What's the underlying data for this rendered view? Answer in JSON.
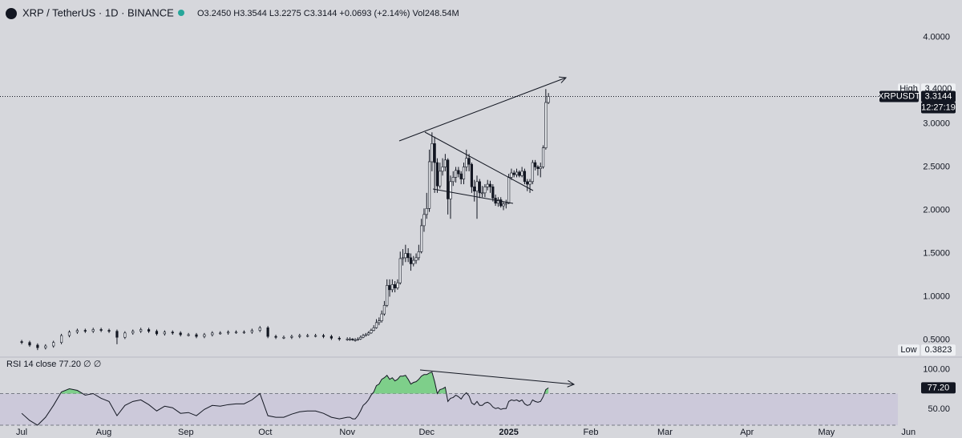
{
  "chart_data": [
    {
      "type": "candlestick",
      "title": "XRP / TetherUS · 1D · BINANCE",
      "ohlc_legend": [
        "O3.2450",
        "H3.3544",
        "L3.2275",
        "C3.3144",
        "+0.0693 (+2.14%)",
        "Vol248.54M"
      ],
      "x": [
        0,
        3,
        6,
        9,
        12,
        15,
        18,
        21,
        24,
        27,
        30,
        33,
        36,
        39,
        42,
        45,
        48,
        51,
        54,
        57,
        60,
        63,
        66,
        69,
        72,
        75,
        78,
        81,
        84,
        87,
        90,
        93,
        96,
        99,
        102,
        105,
        108,
        111,
        114,
        117,
        120,
        123,
        124,
        125,
        126,
        127,
        128,
        129,
        130,
        131,
        132,
        133,
        134,
        135,
        136,
        137,
        138,
        139,
        140,
        141,
        142,
        143,
        144,
        145,
        146,
        147,
        148,
        149,
        150,
        151,
        152,
        153,
        154,
        155,
        156,
        157,
        158,
        159,
        160,
        161,
        162,
        163,
        164,
        165,
        166,
        167,
        168,
        169,
        170,
        171,
        172,
        173,
        174,
        175,
        176,
        177,
        178,
        179,
        180,
        181,
        182,
        183,
        184,
        185,
        186,
        187,
        188,
        189,
        190,
        191,
        192,
        193,
        194,
        195,
        196,
        197,
        198,
        199
      ],
      "open": [
        0.48,
        0.47,
        0.44,
        0.41,
        0.43,
        0.47,
        0.55,
        0.59,
        0.61,
        0.6,
        0.62,
        0.61,
        0.6,
        0.53,
        0.58,
        0.6,
        0.62,
        0.6,
        0.57,
        0.59,
        0.58,
        0.56,
        0.56,
        0.54,
        0.56,
        0.58,
        0.58,
        0.59,
        0.59,
        0.59,
        0.61,
        0.64,
        0.54,
        0.53,
        0.53,
        0.54,
        0.55,
        0.55,
        0.55,
        0.54,
        0.52,
        0.51,
        0.51,
        0.51,
        0.5,
        0.5,
        0.51,
        0.53,
        0.55,
        0.56,
        0.58,
        0.61,
        0.64,
        0.7,
        0.72,
        0.8,
        0.9,
        1.13,
        1.08,
        1.14,
        1.1,
        1.16,
        1.44,
        1.45,
        1.5,
        1.45,
        1.38,
        1.42,
        1.45,
        1.52,
        1.82,
        1.95,
        2.02,
        2.56,
        2.77,
        2.55,
        2.28,
        2.45,
        2.5,
        2.58,
        2.13,
        2.33,
        2.38,
        2.46,
        2.42,
        2.36,
        2.5,
        2.6,
        2.53,
        2.27,
        2.22,
        2.33,
        2.2,
        2.2,
        2.27,
        2.3,
        2.27,
        2.14,
        2.08,
        2.12,
        2.05,
        2.07,
        2.08,
        2.38,
        2.43,
        2.41,
        2.44,
        2.4,
        2.45,
        2.33,
        2.3,
        2.33,
        2.55,
        2.5,
        2.48,
        2.5,
        2.72,
        3.245
      ],
      "high": [
        0.5,
        0.49,
        0.46,
        0.45,
        0.49,
        0.57,
        0.61,
        0.63,
        0.63,
        0.64,
        0.64,
        0.63,
        0.62,
        0.6,
        0.62,
        0.64,
        0.64,
        0.62,
        0.61,
        0.61,
        0.6,
        0.58,
        0.58,
        0.58,
        0.6,
        0.6,
        0.61,
        0.61,
        0.61,
        0.63,
        0.66,
        0.66,
        0.56,
        0.55,
        0.56,
        0.57,
        0.57,
        0.57,
        0.57,
        0.56,
        0.54,
        0.53,
        0.53,
        0.52,
        0.52,
        0.53,
        0.55,
        0.57,
        0.58,
        0.6,
        0.63,
        0.67,
        0.74,
        0.76,
        0.84,
        0.95,
        1.2,
        1.2,
        1.2,
        1.18,
        1.2,
        1.52,
        1.55,
        1.6,
        1.56,
        1.5,
        1.47,
        1.5,
        1.6,
        1.9,
        2.02,
        2.2,
        2.7,
        2.9,
        2.85,
        2.6,
        2.55,
        2.6,
        2.65,
        2.6,
        2.4,
        2.45,
        2.5,
        2.5,
        2.45,
        2.55,
        2.7,
        2.65,
        2.55,
        2.35,
        2.4,
        2.36,
        2.28,
        2.3,
        2.35,
        2.34,
        2.3,
        2.18,
        2.15,
        2.15,
        2.1,
        2.12,
        2.42,
        2.48,
        2.46,
        2.48,
        2.46,
        2.5,
        2.48,
        2.36,
        2.36,
        2.58,
        2.58,
        2.52,
        2.55,
        2.75,
        3.4,
        3.3544
      ],
      "low": [
        0.45,
        0.42,
        0.3823,
        0.39,
        0.41,
        0.45,
        0.53,
        0.57,
        0.58,
        0.58,
        0.59,
        0.58,
        0.45,
        0.51,
        0.56,
        0.58,
        0.58,
        0.55,
        0.55,
        0.56,
        0.54,
        0.54,
        0.52,
        0.52,
        0.54,
        0.56,
        0.56,
        0.57,
        0.57,
        0.57,
        0.59,
        0.52,
        0.51,
        0.51,
        0.51,
        0.52,
        0.53,
        0.53,
        0.52,
        0.5,
        0.49,
        0.49,
        0.49,
        0.49,
        0.48,
        0.49,
        0.5,
        0.52,
        0.54,
        0.55,
        0.57,
        0.6,
        0.63,
        0.67,
        0.7,
        0.78,
        0.88,
        1.0,
        1.05,
        1.05,
        1.08,
        1.14,
        1.36,
        1.4,
        1.4,
        1.3,
        1.35,
        1.38,
        1.42,
        1.5,
        1.75,
        1.9,
        1.98,
        2.45,
        2.2,
        2.2,
        2.25,
        2.4,
        2.45,
        1.95,
        1.9,
        2.28,
        2.32,
        2.38,
        2.3,
        2.3,
        2.45,
        2.45,
        2.2,
        2.1,
        1.9,
        2.14,
        2.15,
        2.15,
        2.23,
        2.2,
        2.1,
        2.05,
        2.04,
        2.03,
        2.0,
        2.02,
        2.07,
        2.35,
        2.38,
        2.38,
        2.38,
        2.38,
        2.3,
        2.22,
        2.2,
        2.3,
        2.46,
        2.4,
        2.38,
        2.48,
        2.7,
        3.2275
      ],
      "close": [
        0.47,
        0.44,
        0.41,
        0.43,
        0.47,
        0.55,
        0.59,
        0.61,
        0.6,
        0.62,
        0.61,
        0.6,
        0.53,
        0.58,
        0.6,
        0.62,
        0.6,
        0.57,
        0.59,
        0.58,
        0.56,
        0.56,
        0.54,
        0.56,
        0.58,
        0.58,
        0.59,
        0.59,
        0.59,
        0.61,
        0.64,
        0.54,
        0.53,
        0.53,
        0.54,
        0.55,
        0.55,
        0.55,
        0.54,
        0.52,
        0.51,
        0.51,
        0.51,
        0.5,
        0.5,
        0.51,
        0.53,
        0.55,
        0.56,
        0.58,
        0.61,
        0.64,
        0.7,
        0.72,
        0.8,
        0.9,
        1.13,
        1.08,
        1.14,
        1.1,
        1.16,
        1.44,
        1.45,
        1.5,
        1.45,
        1.38,
        1.42,
        1.45,
        1.52,
        1.82,
        1.95,
        2.02,
        2.56,
        2.77,
        2.55,
        2.28,
        2.45,
        2.5,
        2.58,
        2.13,
        2.33,
        2.38,
        2.46,
        2.42,
        2.36,
        2.5,
        2.6,
        2.53,
        2.27,
        2.22,
        2.33,
        2.2,
        2.2,
        2.27,
        2.3,
        2.27,
        2.14,
        2.08,
        2.12,
        2.05,
        2.07,
        2.08,
        2.38,
        2.43,
        2.41,
        2.44,
        2.4,
        2.45,
        2.33,
        2.3,
        2.33,
        2.55,
        2.5,
        2.48,
        2.5,
        2.72,
        3.245,
        3.3144
      ],
      "up_color": "#eceef2",
      "down_color": "#131722",
      "xlim": [
        -8.2,
        331
      ],
      "ylim": [
        0.31,
        4.43
      ],
      "yticks": [
        {
          "value": 4,
          "label": "4.0000"
        },
        {
          "value": 3,
          "label": "3.0000"
        },
        {
          "value": 2.5,
          "label": "2.5000"
        },
        {
          "value": 2,
          "label": "2.0000"
        },
        {
          "value": 1.5,
          "label": "1.5000"
        },
        {
          "value": 1,
          "label": "1.0000"
        },
        {
          "value": 0.5,
          "label": "0.5000"
        }
      ],
      "high_tag": {
        "label": "High",
        "price": {
          "value": 3.4,
          "label": "3.4000"
        }
      },
      "low_tag": {
        "label": "Low",
        "price": {
          "value": 0.3823,
          "label": "0.3823"
        }
      },
      "last_tag": {
        "symbol": "XRPUSDT",
        "price": {
          "value": 3.3144,
          "label": "3.3144"
        },
        "countdown": "12:27:19"
      }
    },
    {
      "type": "line",
      "legend": [
        "RSI 14 close",
        "77.20",
        "∅",
        "∅"
      ],
      "x": [
        0,
        3,
        6,
        9,
        12,
        15,
        18,
        21,
        24,
        27,
        30,
        33,
        36,
        39,
        42,
        45,
        48,
        51,
        54,
        57,
        60,
        63,
        66,
        69,
        72,
        75,
        78,
        81,
        84,
        87,
        90,
        93,
        96,
        99,
        102,
        105,
        108,
        111,
        114,
        117,
        120,
        123,
        124,
        125,
        126,
        127,
        128,
        129,
        130,
        131,
        132,
        133,
        134,
        135,
        136,
        137,
        138,
        139,
        140,
        141,
        142,
        143,
        144,
        145,
        146,
        147,
        148,
        149,
        150,
        151,
        152,
        153,
        154,
        155,
        156,
        157,
        158,
        159,
        160,
        161,
        162,
        163,
        164,
        165,
        166,
        167,
        168,
        169,
        170,
        171,
        172,
        173,
        174,
        175,
        176,
        177,
        178,
        179,
        180,
        181,
        182,
        183,
        184,
        185,
        186,
        187,
        188,
        189,
        190,
        191,
        192,
        193,
        194,
        195,
        196,
        197,
        198,
        199
      ],
      "values": [
        45,
        36,
        30,
        40,
        55,
        72,
        76,
        74,
        68,
        70,
        64,
        60,
        42,
        55,
        60,
        62,
        56,
        48,
        54,
        52,
        45,
        46,
        42,
        50,
        55,
        54,
        56,
        57,
        57,
        62,
        70,
        42,
        40,
        40,
        44,
        47,
        48,
        48,
        45,
        40,
        38,
        40,
        40,
        38,
        38,
        42,
        48,
        55,
        58,
        62,
        68,
        72,
        80,
        82,
        88,
        90,
        93,
        88,
        90,
        86,
        88,
        92,
        92,
        93,
        88,
        82,
        84,
        85,
        88,
        92,
        94,
        94,
        96,
        97,
        85,
        70,
        75,
        76,
        78,
        60,
        64,
        65,
        68,
        66,
        63,
        68,
        71,
        67,
        58,
        56,
        60,
        55,
        55,
        58,
        59,
        57,
        53,
        51,
        52,
        50,
        51,
        51,
        60,
        62,
        61,
        62,
        60,
        62,
        57,
        55,
        56,
        62,
        60,
        59,
        60,
        66,
        75,
        77.2
      ],
      "color": "#131722",
      "overbought_color": "#7ecf8a",
      "band_color": "#c9c6da",
      "band": [
        30,
        70
      ],
      "xlim": [
        -8.2,
        331
      ],
      "xticks": [
        {
          "value": 0,
          "label": "Jul"
        },
        {
          "value": 31,
          "label": "Aug"
        },
        {
          "value": 62,
          "label": "Sep"
        },
        {
          "value": 92,
          "label": "Oct"
        },
        {
          "value": 123,
          "label": "Nov"
        },
        {
          "value": 153,
          "label": "Dec"
        },
        {
          "value": 184,
          "label": "2025"
        },
        {
          "value": 215,
          "label": "Feb"
        },
        {
          "value": 243,
          "label": "Mar"
        },
        {
          "value": 274,
          "label": "Apr"
        },
        {
          "value": 304,
          "label": "May"
        },
        {
          "value": 335,
          "label": "Jun"
        }
      ],
      "ylim": [
        29,
        114
      ],
      "yticks": [
        {
          "value": 100,
          "label": "100.00"
        },
        {
          "value": 50,
          "label": "50.00"
        }
      ],
      "last_tag": {
        "value": 77.2,
        "label": "77.20"
      }
    }
  ]
}
